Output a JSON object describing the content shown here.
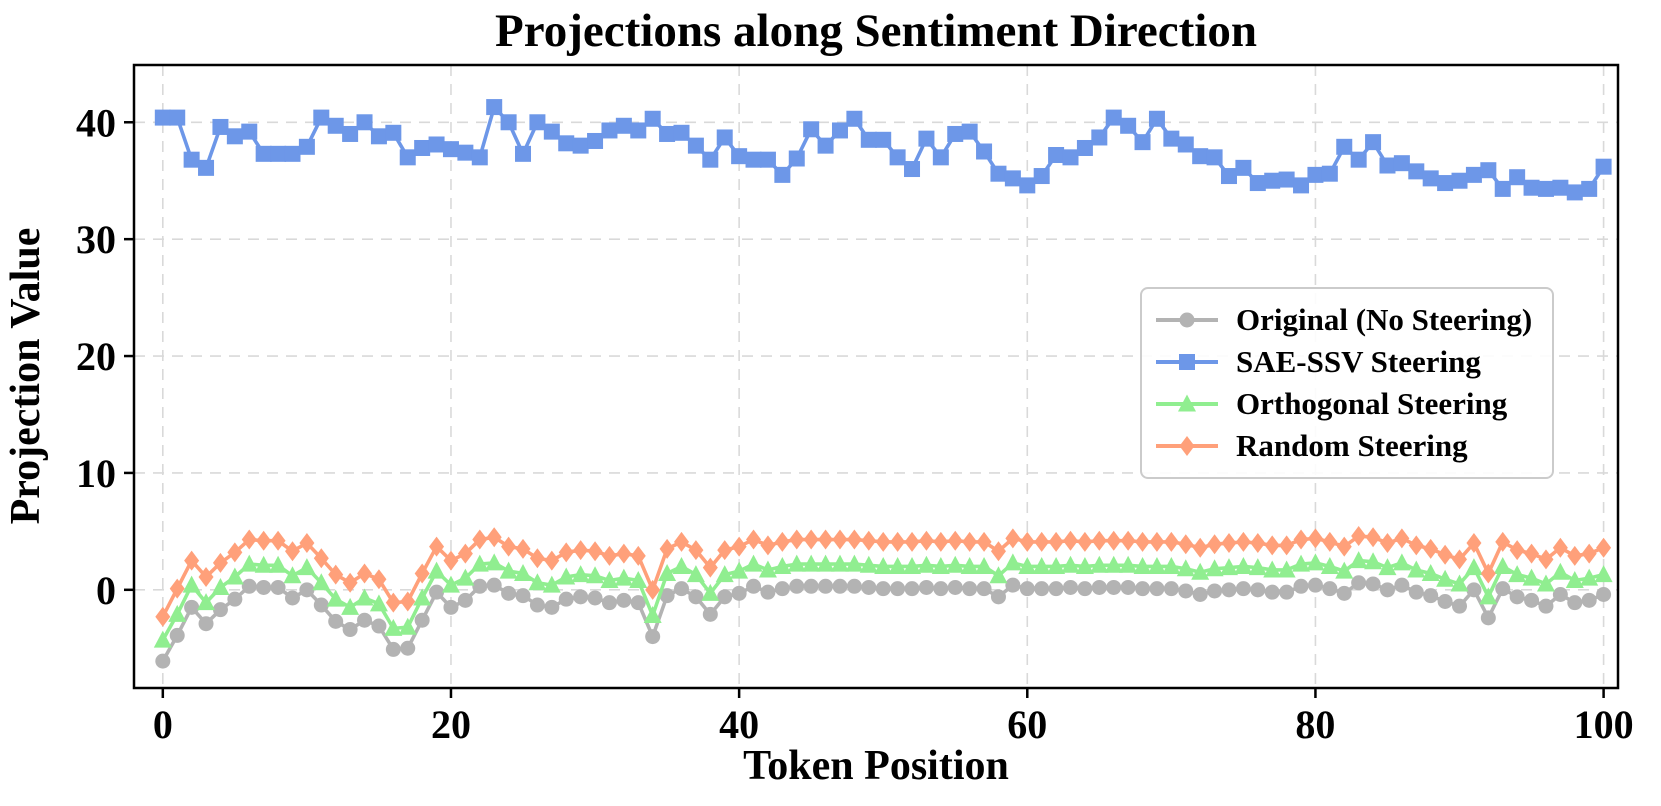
{
  "chart_data": {
    "type": "line",
    "title": "Projections along Sentiment Direction",
    "xlabel": "Token Position",
    "ylabel": "Projection Value",
    "x_ticks": [
      0,
      20,
      40,
      60,
      80,
      100
    ],
    "y_ticks": [
      0,
      10,
      20,
      30,
      40
    ],
    "xlim": [
      -2,
      101
    ],
    "ylim": [
      -8.4,
      44.9
    ],
    "grid": "dashed",
    "legend_position": "center-right",
    "x": [
      0,
      1,
      2,
      3,
      4,
      5,
      6,
      7,
      8,
      9,
      10,
      11,
      12,
      13,
      14,
      15,
      16,
      17,
      18,
      19,
      20,
      21,
      22,
      23,
      24,
      25,
      26,
      27,
      28,
      29,
      30,
      31,
      32,
      33,
      34,
      35,
      36,
      37,
      38,
      39,
      40,
      41,
      42,
      43,
      44,
      45,
      46,
      47,
      48,
      49,
      50,
      51,
      52,
      53,
      54,
      55,
      56,
      57,
      58,
      59,
      60,
      61,
      62,
      63,
      64,
      65,
      66,
      67,
      68,
      69,
      70,
      71,
      72,
      73,
      74,
      75,
      76,
      77,
      78,
      79,
      80,
      81,
      82,
      83,
      84,
      85,
      86,
      87,
      88,
      89,
      90,
      91,
      92,
      93,
      94,
      95,
      96,
      97,
      98,
      99,
      100
    ],
    "series": [
      {
        "name": "Original (No Steering)",
        "color": "#b3b3b3",
        "marker": "circle",
        "values": [
          -6.1,
          -3.9,
          -1.5,
          -2.9,
          -1.7,
          -0.8,
          0.3,
          0.2,
          0.2,
          -0.7,
          0.0,
          -1.3,
          -2.7,
          -3.4,
          -2.6,
          -3.1,
          -5.1,
          -5.0,
          -2.6,
          -0.2,
          -1.5,
          -0.9,
          0.3,
          0.4,
          -0.3,
          -0.5,
          -1.3,
          -1.5,
          -0.8,
          -0.6,
          -0.7,
          -1.1,
          -0.9,
          -1.1,
          -4.0,
          -0.5,
          0.1,
          -0.6,
          -2.1,
          -0.6,
          -0.3,
          0.3,
          -0.2,
          0.1,
          0.3,
          0.3,
          0.3,
          0.3,
          0.3,
          0.2,
          0.1,
          0.1,
          0.1,
          0.2,
          0.1,
          0.2,
          0.1,
          0.1,
          -0.6,
          0.4,
          0.1,
          0.1,
          0.1,
          0.2,
          0.1,
          0.2,
          0.2,
          0.2,
          0.1,
          0.1,
          0.1,
          -0.1,
          -0.4,
          -0.1,
          0.0,
          0.1,
          0.0,
          -0.2,
          -0.2,
          0.3,
          0.4,
          0.1,
          -0.3,
          0.6,
          0.5,
          0.0,
          0.4,
          -0.2,
          -0.5,
          -1.0,
          -1.4,
          0.0,
          -2.4,
          0.1,
          -0.6,
          -0.9,
          -1.4,
          -0.4,
          -1.1,
          -0.9,
          -0.4
        ]
      },
      {
        "name": "SAE-SSV Steering",
        "color": "#6d97e8",
        "marker": "square",
        "values": [
          40.4,
          40.4,
          36.8,
          36.1,
          39.6,
          38.8,
          39.2,
          37.3,
          37.3,
          37.3,
          37.9,
          40.4,
          39.7,
          39.0,
          40.0,
          38.8,
          39.1,
          37.0,
          37.8,
          38.1,
          37.7,
          37.4,
          37.0,
          41.3,
          40.0,
          37.3,
          40.0,
          39.2,
          38.2,
          38.0,
          38.4,
          39.3,
          39.7,
          39.3,
          40.3,
          39.0,
          39.1,
          38.0,
          36.8,
          38.7,
          37.1,
          36.8,
          36.8,
          35.5,
          36.9,
          39.4,
          38.0,
          39.3,
          40.3,
          38.5,
          38.5,
          37.0,
          36.0,
          38.6,
          37.0,
          39.0,
          39.2,
          37.5,
          35.6,
          35.2,
          34.6,
          35.4,
          37.2,
          37.0,
          37.8,
          38.7,
          40.4,
          39.7,
          38.3,
          40.3,
          38.6,
          38.1,
          37.1,
          37.0,
          35.4,
          36.1,
          34.8,
          35.0,
          35.1,
          34.6,
          35.5,
          35.6,
          37.9,
          36.8,
          38.3,
          36.3,
          36.5,
          35.8,
          35.2,
          34.8,
          35.0,
          35.5,
          35.9,
          34.3,
          35.3,
          34.4,
          34.3,
          34.4,
          34.0,
          34.3,
          36.2
        ]
      },
      {
        "name": "Orthogonal Steering",
        "color": "#90ee90",
        "marker": "triangle",
        "values": [
          -4.3,
          -2.1,
          0.4,
          -1.1,
          0.2,
          1.1,
          2.2,
          2.1,
          2.1,
          1.2,
          1.9,
          0.6,
          -0.8,
          -1.5,
          -0.7,
          -1.2,
          -3.3,
          -3.2,
          -0.7,
          1.6,
          0.4,
          1.0,
          2.2,
          2.3,
          1.6,
          1.4,
          0.6,
          0.4,
          1.1,
          1.3,
          1.2,
          0.8,
          1.0,
          0.8,
          -2.2,
          1.4,
          2.0,
          1.3,
          -0.3,
          1.3,
          1.6,
          2.2,
          1.7,
          2.0,
          2.2,
          2.2,
          2.2,
          2.2,
          2.2,
          2.1,
          2.0,
          2.0,
          2.0,
          2.1,
          2.0,
          2.1,
          2.0,
          2.0,
          1.2,
          2.3,
          2.0,
          2.0,
          2.0,
          2.1,
          2.0,
          2.1,
          2.1,
          2.1,
          2.0,
          2.0,
          2.0,
          1.8,
          1.5,
          1.8,
          1.9,
          2.0,
          1.9,
          1.7,
          1.7,
          2.2,
          2.3,
          2.0,
          1.6,
          2.5,
          2.4,
          1.9,
          2.3,
          1.7,
          1.4,
          0.9,
          0.5,
          1.9,
          -0.6,
          2.0,
          1.3,
          1.0,
          0.5,
          1.5,
          0.8,
          1.0,
          1.3
        ]
      },
      {
        "name": "Random Steering",
        "color": "#ffa07a",
        "marker": "diamond",
        "values": [
          -2.3,
          0.1,
          2.5,
          1.1,
          2.3,
          3.2,
          4.3,
          4.2,
          4.2,
          3.3,
          4.0,
          2.7,
          1.3,
          0.6,
          1.4,
          0.9,
          -1.1,
          -1.0,
          1.4,
          3.7,
          2.5,
          3.1,
          4.3,
          4.5,
          3.7,
          3.5,
          2.7,
          2.5,
          3.2,
          3.4,
          3.3,
          2.9,
          3.1,
          2.9,
          0.0,
          3.5,
          4.1,
          3.4,
          1.9,
          3.4,
          3.7,
          4.3,
          3.8,
          4.1,
          4.3,
          4.3,
          4.3,
          4.3,
          4.3,
          4.2,
          4.1,
          4.1,
          4.1,
          4.2,
          4.1,
          4.2,
          4.1,
          4.1,
          3.3,
          4.4,
          4.1,
          4.1,
          4.1,
          4.2,
          4.1,
          4.2,
          4.2,
          4.2,
          4.1,
          4.1,
          4.1,
          3.9,
          3.6,
          3.9,
          4.0,
          4.1,
          4.0,
          3.8,
          3.8,
          4.3,
          4.4,
          4.1,
          3.7,
          4.6,
          4.5,
          4.0,
          4.4,
          3.8,
          3.5,
          3.0,
          2.6,
          4.0,
          1.4,
          4.1,
          3.4,
          3.1,
          2.6,
          3.6,
          2.9,
          3.1,
          3.6
        ]
      }
    ]
  }
}
